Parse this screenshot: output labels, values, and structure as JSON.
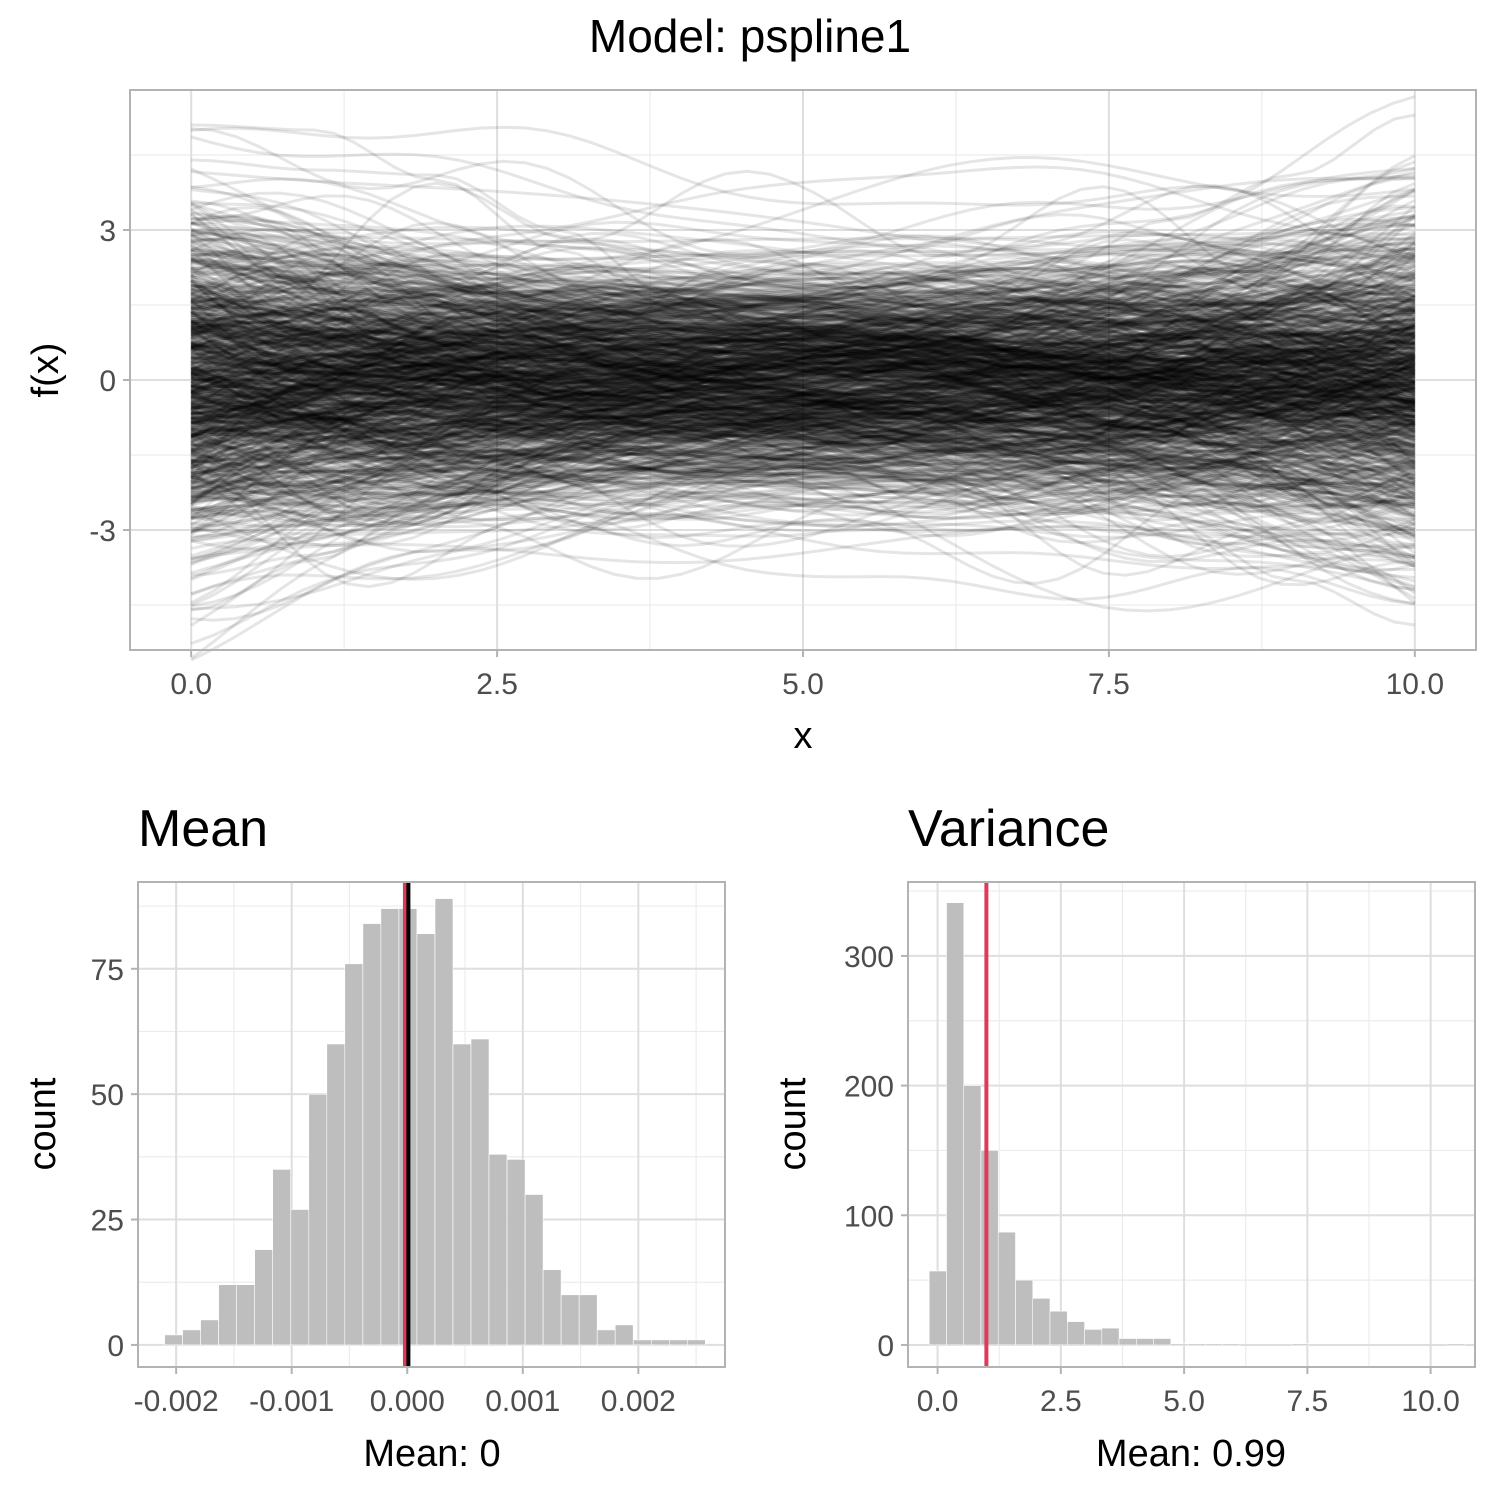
{
  "figure_title": "Model: pspline1",
  "chart_data": [
    {
      "id": "functions",
      "type": "line",
      "title": "",
      "xlabel": "x",
      "ylabel": "f(x)",
      "xlim": [
        -0.5,
        10.5
      ],
      "ylim": [
        -5.4,
        5.8
      ],
      "x_ticks": [
        0,
        2.5,
        5,
        7.5,
        10
      ],
      "x_tick_labels": [
        "0.0",
        "2.5",
        "5.0",
        "7.5",
        "10.0"
      ],
      "y_ticks": [
        -3,
        0,
        3
      ],
      "y_tick_labels": [
        "-3",
        "0",
        "3"
      ],
      "grid": true,
      "line_color": "#000000",
      "line_opacity": 0.1,
      "n_curves": 1000,
      "sample_curves": [
        {
          "x": [
            0,
            1,
            2,
            3,
            4,
            5,
            6,
            7,
            8,
            9,
            10
          ],
          "y": [
            5.1,
            5.0,
            4.0,
            2.6,
            1.4,
            1.0,
            1.4,
            2.2,
            3.2,
            4.1,
            5.3
          ]
        },
        {
          "x": [
            0,
            1,
            2,
            3,
            4,
            5,
            6,
            7,
            8,
            9,
            10
          ],
          "y": [
            -4.6,
            -3.6,
            -2.4,
            -1.2,
            -0.6,
            -0.4,
            -0.8,
            -1.8,
            -2.9,
            -4.0,
            -4.9
          ]
        },
        {
          "x": [
            0,
            1,
            2,
            3,
            4,
            5,
            6,
            7,
            8,
            9,
            10
          ],
          "y": [
            4.4,
            4.2,
            4.1,
            3.0,
            1.6,
            0.8,
            0.2,
            -0.4,
            -0.6,
            -0.3,
            0.2
          ]
        },
        {
          "x": [
            0,
            1,
            2,
            3,
            4,
            5,
            6,
            7,
            8,
            9,
            10
          ],
          "y": [
            -3.9,
            -3.5,
            -2.6,
            -1.6,
            -1.0,
            -1.6,
            -2.4,
            -2.7,
            -2.1,
            -1.2,
            -0.6
          ]
        }
      ]
    },
    {
      "id": "mean-hist",
      "type": "bar",
      "title": "Mean",
      "xlabel": "Mean: 0",
      "ylabel": "count",
      "xlim": [
        -0.00233,
        0.00275
      ],
      "ylim": [
        -4.4,
        92.3
      ],
      "x_ticks": [
        -0.002,
        -0.001,
        0.0,
        0.001,
        0.002
      ],
      "x_tick_labels": [
        "-0.002",
        "-0.001",
        "0.000",
        "0.001",
        "0.002"
      ],
      "y_ticks": [
        0,
        25,
        50,
        75
      ],
      "y_tick_labels": [
        "0",
        "25",
        "50",
        "75"
      ],
      "grid": true,
      "bar_color": "#bebebe",
      "bin_start": -0.0021,
      "bin_width": 0.000156,
      "values": [
        2,
        3,
        5,
        12,
        12,
        19,
        35,
        27,
        50,
        60,
        76,
        84,
        87,
        87,
        82,
        89,
        60,
        61,
        38,
        37,
        30,
        15,
        10,
        10,
        3,
        4,
        1,
        1,
        1,
        1
      ],
      "vlines": [
        {
          "x": -2e-05,
          "color": "#dc3c5a",
          "label": "red"
        },
        {
          "x": 1e-05,
          "color": "#000000",
          "label": "black"
        }
      ]
    },
    {
      "id": "variance-hist",
      "type": "bar",
      "title": "Variance",
      "xlabel": "Mean: 0.99",
      "ylabel": "count",
      "xlim": [
        -0.6,
        10.9
      ],
      "ylim": [
        -17,
        357
      ],
      "x_ticks": [
        0,
        2.5,
        5,
        7.5,
        10
      ],
      "x_tick_labels": [
        "0.0",
        "2.5",
        "5.0",
        "7.5",
        "10.0"
      ],
      "y_ticks": [
        0,
        100,
        200,
        300
      ],
      "y_tick_labels": [
        "0",
        "100",
        "200",
        "300"
      ],
      "grid": true,
      "bar_color": "#bebebe",
      "bin_start": -0.17,
      "bin_width": 0.35,
      "values": [
        57,
        341,
        200,
        150,
        87,
        50,
        36,
        26,
        18,
        12,
        13,
        5,
        5,
        5,
        1,
        1,
        1,
        1,
        0,
        0,
        0,
        1,
        0,
        0,
        0,
        0,
        0,
        0,
        0,
        0,
        1
      ],
      "vlines": [
        {
          "x": 0.99,
          "color": "#dc3c5a",
          "label": "red"
        }
      ]
    }
  ]
}
